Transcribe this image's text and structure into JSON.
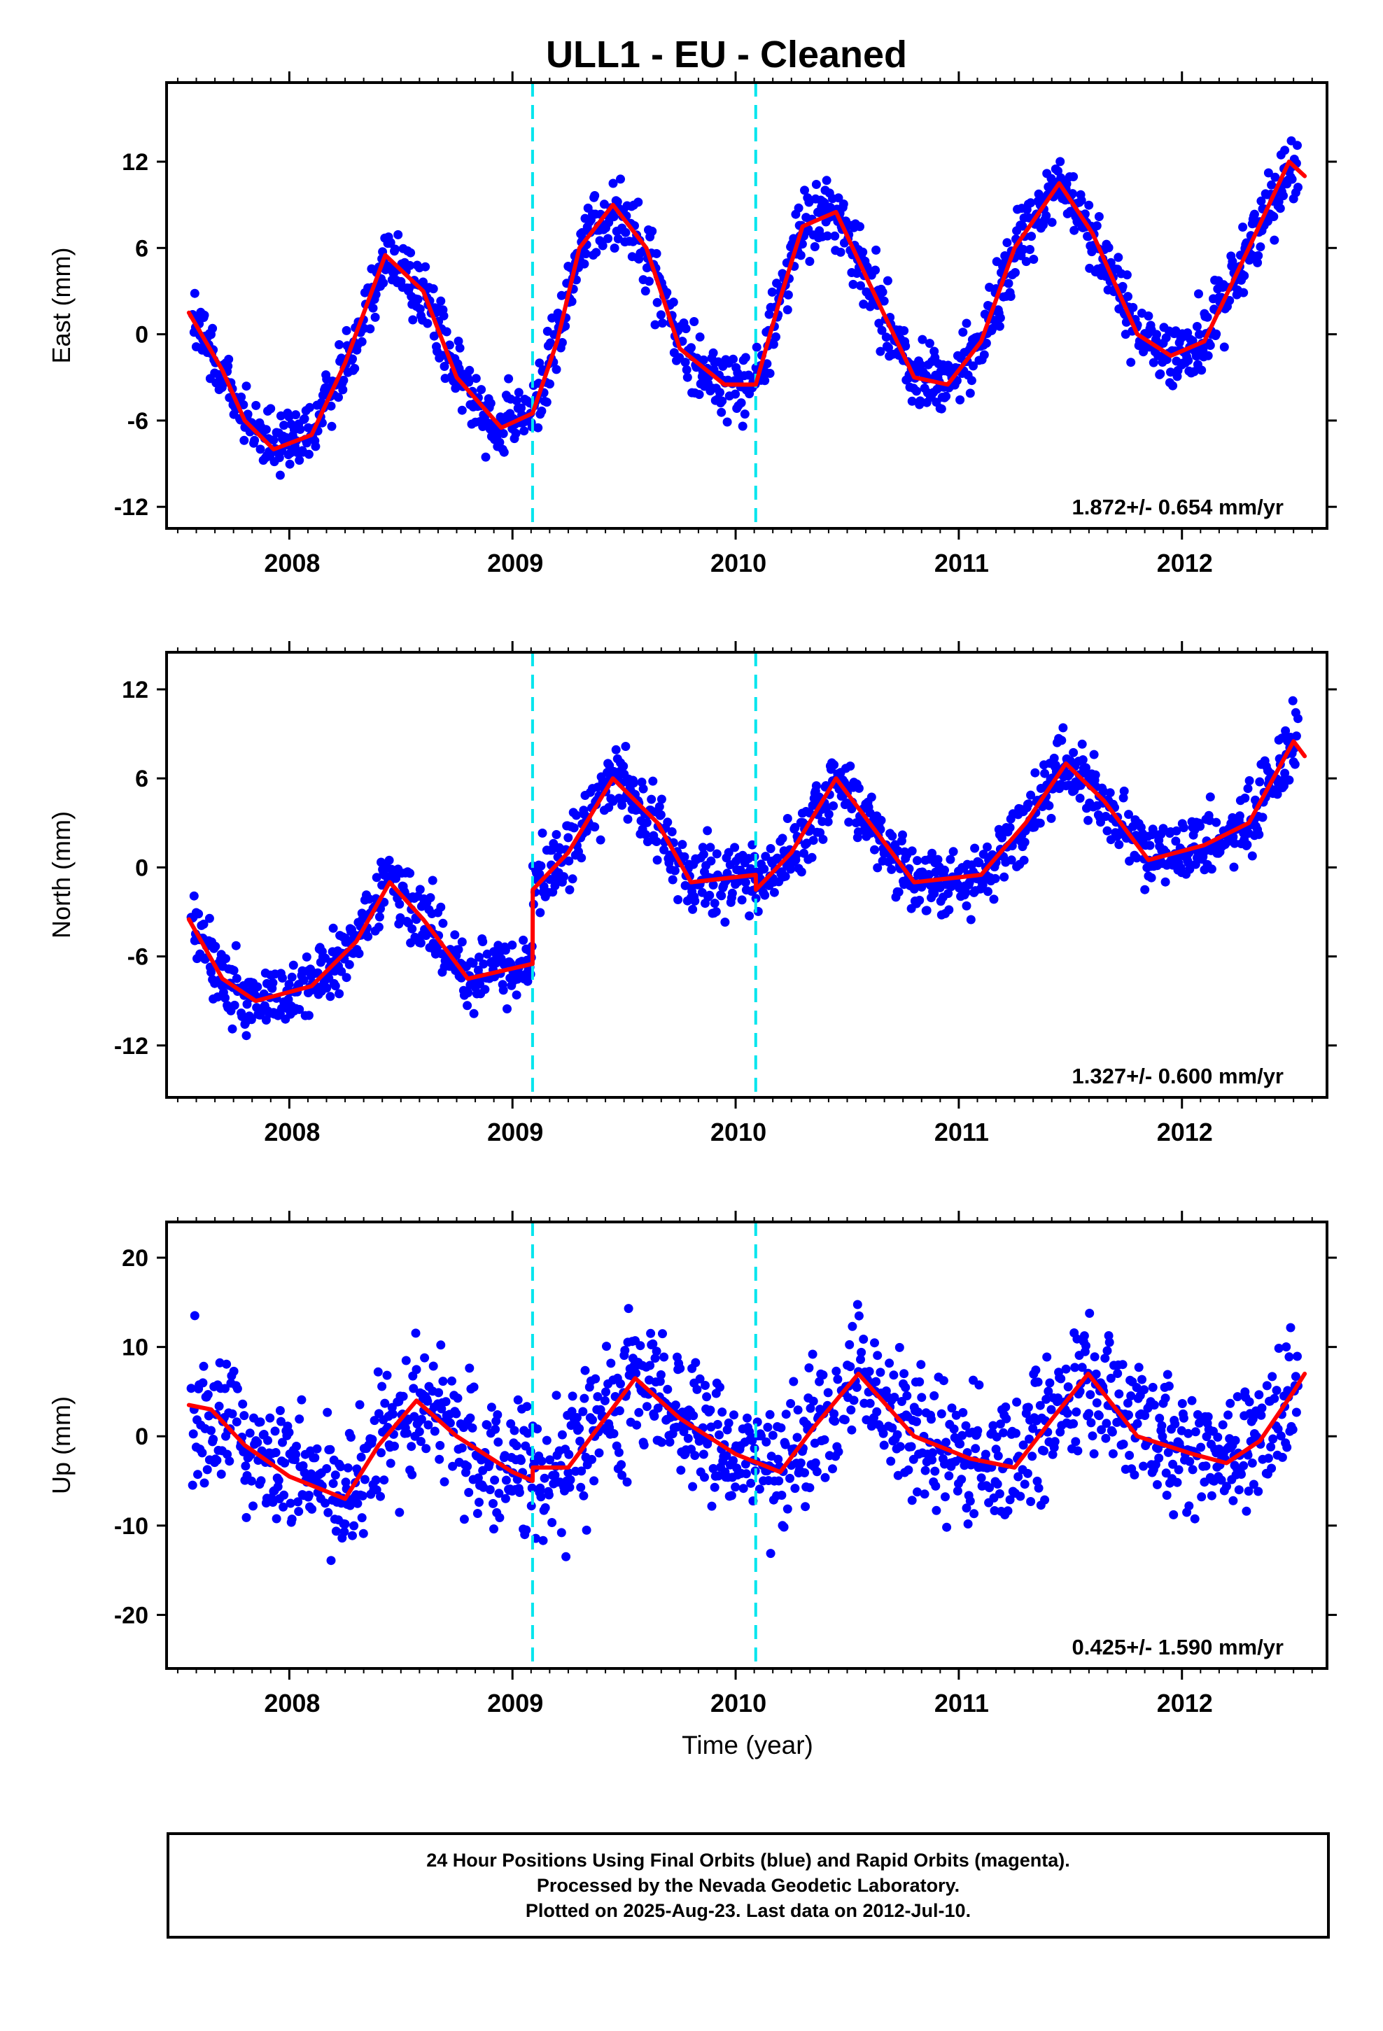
{
  "chart_data": {
    "type": "scatter",
    "title": "ULL1  - EU - Cleaned",
    "xlabel": "Time (year)",
    "xlim": [
      2007.45,
      2012.65
    ],
    "xticks": [
      "2008",
      "2009",
      "2010",
      "2011",
      "2012"
    ],
    "xtick_values": [
      2008,
      2009,
      2010,
      2011,
      2012
    ],
    "offset_lines": [
      2009.09,
      2010.09
    ],
    "colors": {
      "points": "#0000ff",
      "fit": "#ff0000",
      "offsets": "#00e5ee",
      "frame": "#000000"
    },
    "panels": [
      {
        "ylabel": "East (mm)",
        "ylim": [
          -13.5,
          17.5
        ],
        "yticks": [
          "12",
          "6",
          "0",
          "-6",
          "-12"
        ],
        "ytick_values": [
          12,
          6,
          0,
          -6,
          -12
        ],
        "rate_label": "1.872+/- 0.654 mm/yr",
        "series": [
          {
            "name": "",
            "type": "line",
            "x": [
              2007.55,
              2007.7,
              2007.8,
              2007.93,
              2008.1,
              2008.25,
              2008.43,
              2008.6,
              2008.75,
              2008.95,
              2009.09,
              2009.2,
              2009.3,
              2009.45,
              2009.6,
              2009.75,
              2009.95,
              2010.09,
              2010.2,
              2010.3,
              2010.45,
              2010.6,
              2010.8,
              2010.95,
              2011.1,
              2011.25,
              2011.45,
              2011.6,
              2011.8,
              2011.95,
              2012.1,
              2012.3,
              2012.48,
              2012.55
            ],
            "y": [
              1.5,
              -2.5,
              -6,
              -8,
              -7,
              -2,
              5.5,
              3,
              -3,
              -6.5,
              -5.5,
              -0.5,
              6,
              9,
              6,
              -1,
              -3.5,
              -3.5,
              2.5,
              7.5,
              8.5,
              3.5,
              -3,
              -3.5,
              -0.5,
              6,
              10.5,
              7,
              0,
              -1.5,
              -0.5,
              6,
              12,
              11
            ]
          }
        ]
      },
      {
        "ylabel": "North (mm)",
        "ylim": [
          -15.5,
          14.5
        ],
        "yticks": [
          "12",
          "6",
          "0",
          "-6",
          "-12"
        ],
        "ytick_values": [
          12,
          6,
          0,
          -6,
          -12
        ],
        "rate_label": "1.327+/- 0.600 mm/yr",
        "series": [
          {
            "name": "",
            "type": "line",
            "x": [
              2007.55,
              2007.7,
              2007.85,
              2008.1,
              2008.3,
              2008.45,
              2008.6,
              2008.8,
              2009.09,
              2009.091,
              2009.25,
              2009.45,
              2009.65,
              2009.8,
              2010.09,
              2010.091,
              2010.25,
              2010.45,
              2010.6,
              2010.8,
              2011.1,
              2011.3,
              2011.48,
              2011.65,
              2011.85,
              2012.1,
              2012.3,
              2012.5,
              2012.55
            ],
            "y": [
              -3.5,
              -7.5,
              -9,
              -8,
              -5,
              -1,
              -3.5,
              -7.5,
              -6.5,
              -1.5,
              1,
              6,
              3,
              -1,
              -0.5,
              -1.5,
              1,
              6,
              3,
              -1,
              -0.5,
              3,
              7,
              4.5,
              0.5,
              1.5,
              3,
              8.5,
              7.5
            ]
          }
        ]
      },
      {
        "ylabel": "Up (mm)",
        "ylim": [
          -26,
          24
        ],
        "yticks": [
          "20",
          "10",
          "0",
          "-10",
          "-20"
        ],
        "ytick_values": [
          20,
          10,
          0,
          -10,
          -20
        ],
        "rate_label": "0.425+/- 1.590 mm/yr",
        "series": [
          {
            "name": "",
            "type": "line",
            "x": [
              2007.55,
              2007.65,
              2007.8,
              2008.0,
              2008.25,
              2008.4,
              2008.57,
              2008.75,
              2009.0,
              2009.09,
              2009.091,
              2009.25,
              2009.55,
              2009.75,
              2010.0,
              2010.2,
              2010.35,
              2010.55,
              2010.8,
              2011.05,
              2011.25,
              2011.42,
              2011.58,
              2011.8,
              2012.05,
              2012.2,
              2012.35,
              2012.5,
              2012.55
            ],
            "y": [
              3.5,
              3,
              -1,
              -4.5,
              -7,
              -1,
              4,
              0,
              -4,
              -5,
              -3.5,
              -3.5,
              6.5,
              2,
              -2,
              -4,
              1,
              7,
              0,
              -2.5,
              -3.5,
              2,
              7,
              0,
              -2,
              -3,
              -0.5,
              5,
              7
            ]
          }
        ]
      }
    ]
  },
  "footer": {
    "line1": "24 Hour Positions Using Final Orbits (blue) and Rapid Orbits (magenta).",
    "line2": "Processed by the Nevada Geodetic Laboratory.",
    "line3": "Plotted on 2025-Aug-23. Last data on 2012-Jul-10."
  }
}
